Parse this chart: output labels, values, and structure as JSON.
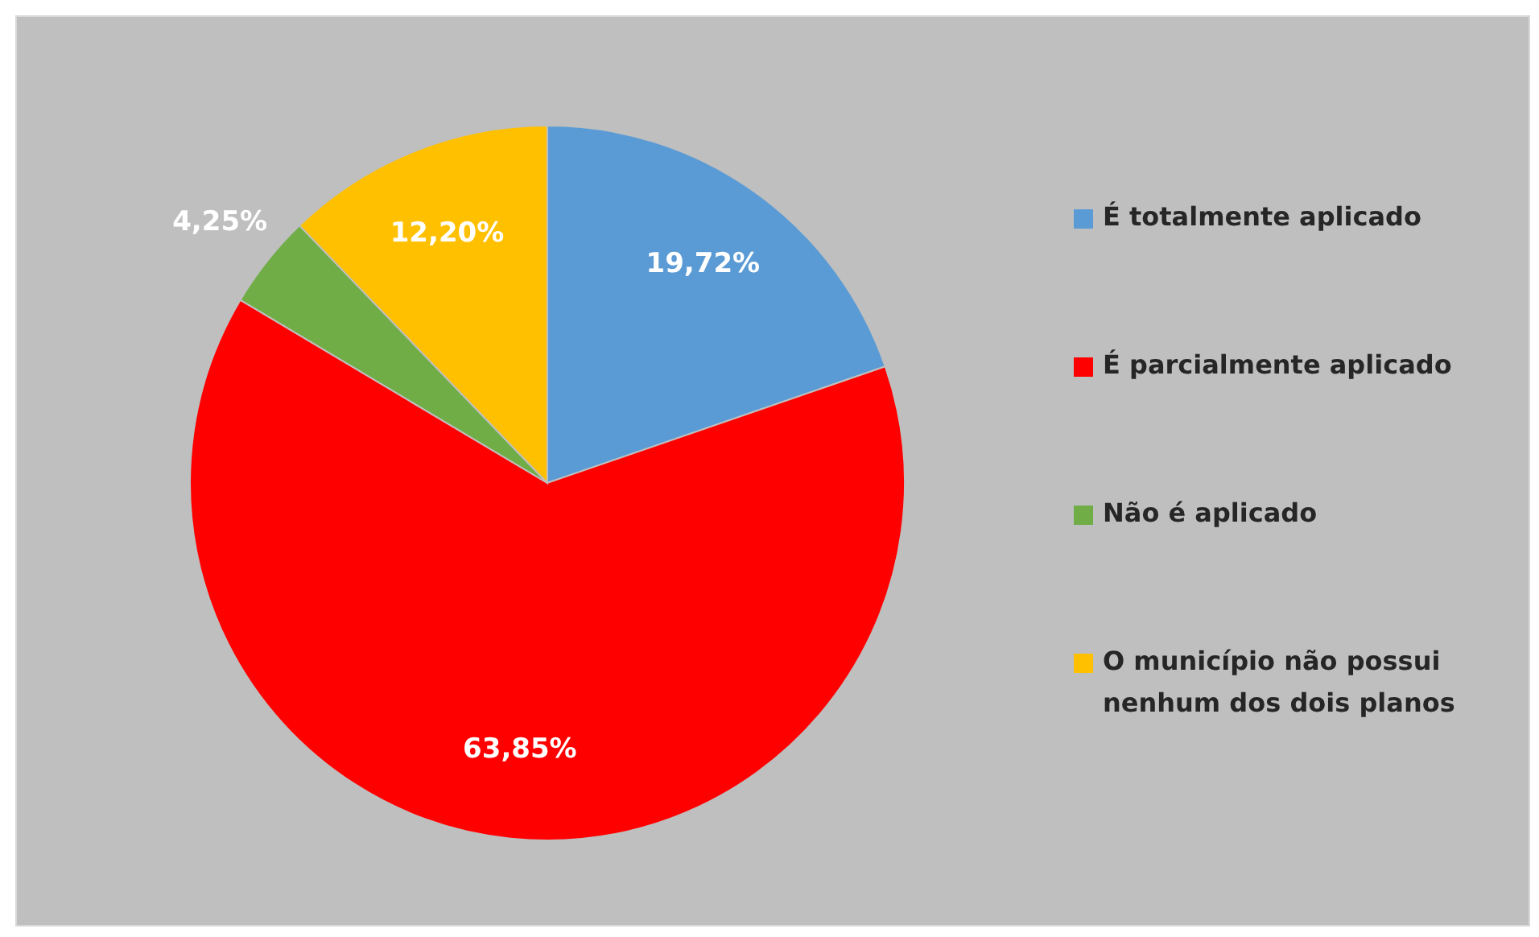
{
  "chart_data": {
    "type": "pie",
    "categories": [
      "É totalmente aplicado",
      "É parcialmente aplicado",
      "Não é aplicado",
      "O município não possui nenhum dos dois planos"
    ],
    "values": [
      19.72,
      63.85,
      4.25,
      12.2
    ],
    "colors": [
      "#5b9bd5",
      "#ff0000",
      "#70ad47",
      "#ffc000"
    ],
    "value_labels": [
      "19,72%",
      "63,85%",
      "4,25%",
      "12,20%"
    ],
    "legend": "right"
  }
}
